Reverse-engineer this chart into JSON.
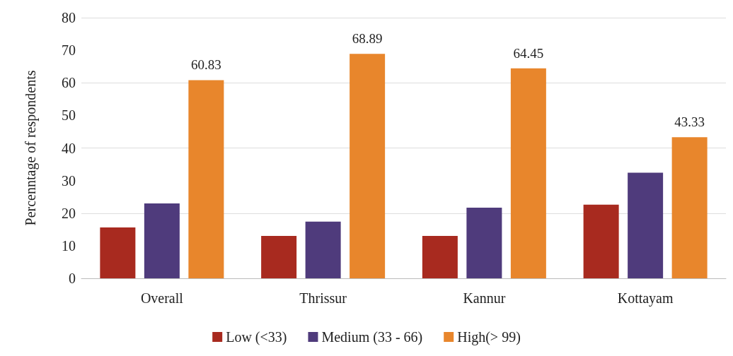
{
  "chart_data": {
    "type": "bar",
    "ylabel": "Percenntage of respondents",
    "categories": [
      "Overall",
      "Thrissur",
      "Kannur",
      "Kottayam"
    ],
    "series": [
      {
        "name": "Low (<33)",
        "color": "#a82a1f",
        "values": [
          15.6,
          13.0,
          13.0,
          22.6
        ]
      },
      {
        "name": "Medium (33 - 66)",
        "color": "#4f3b7c",
        "values": [
          23.0,
          17.4,
          21.7,
          32.4
        ]
      },
      {
        "name": "High(> 99)",
        "color": "#e8862c",
        "values": [
          60.83,
          68.89,
          64.45,
          43.33
        ],
        "value_labels": [
          "60.83",
          "68.89",
          "64.45",
          "43.33"
        ]
      }
    ],
    "ylim": [
      0,
      80
    ],
    "yticks": [
      0,
      10,
      20,
      30,
      40,
      50,
      60,
      70,
      80
    ],
    "grid": "y",
    "legend": "bottom"
  }
}
